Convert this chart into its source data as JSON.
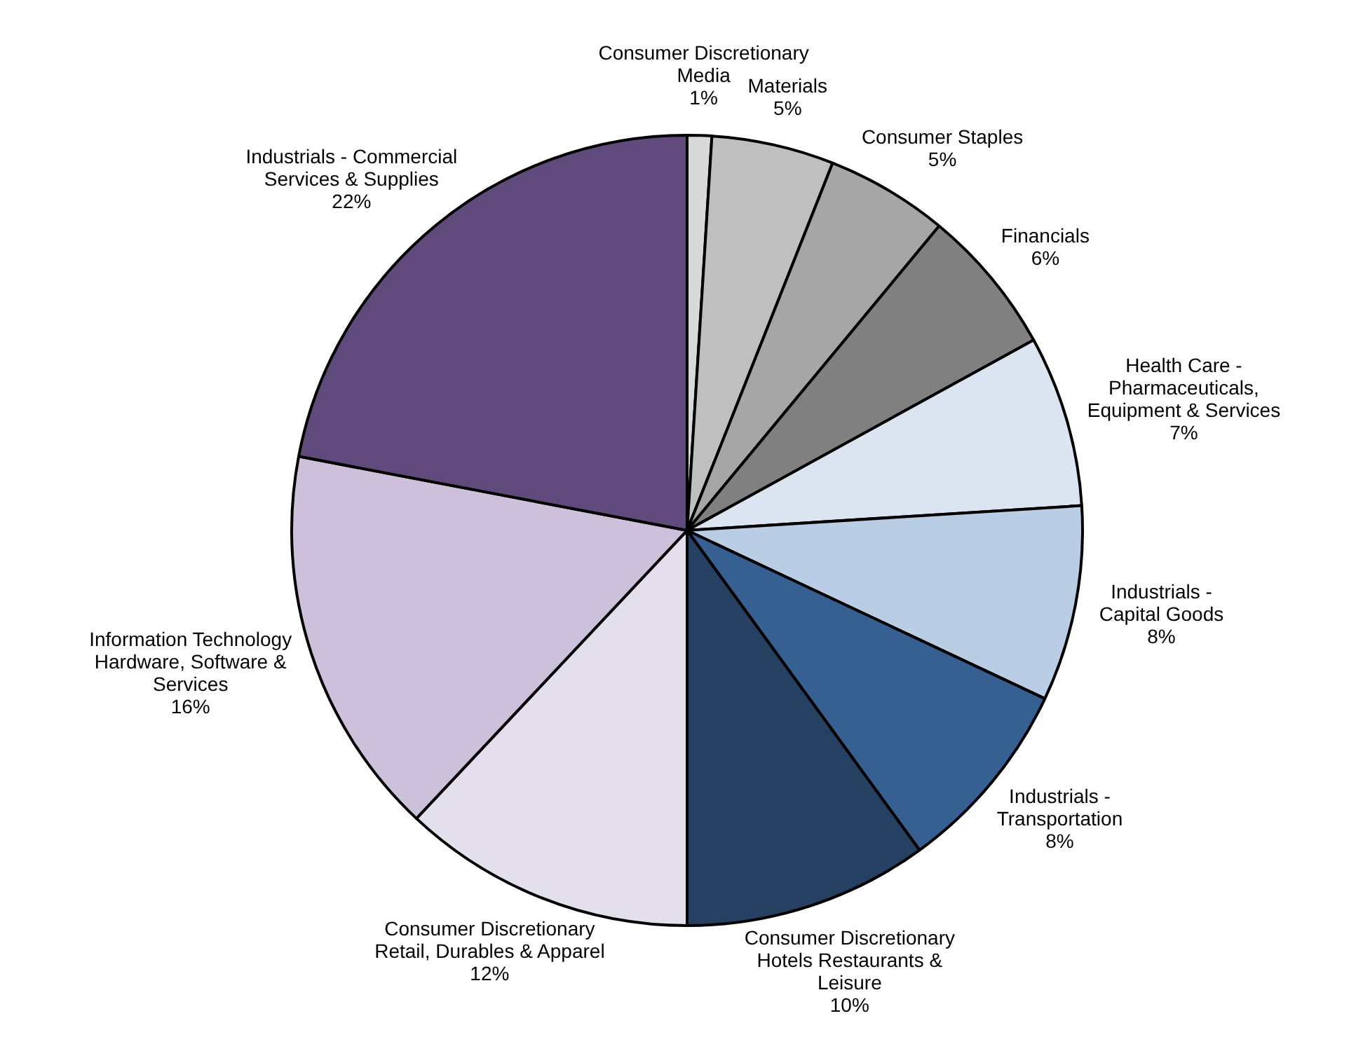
{
  "chart_data": {
    "type": "pie",
    "categories": [
      "Consumer Discretionary\nMedia",
      "Materials",
      "Consumer Staples",
      "Financials",
      "Health Care -\nPharmaceuticals,\nEquipment & Services",
      "Industrials -\nCapital Goods",
      "Industrials -\nTransportation",
      "Consumer Discretionary\nHotels Restaurants &\nLeisure",
      "Consumer Discretionary\nRetail, Durables & Apparel",
      "Information Technology\nHardware, Software &\nServices",
      "Industrials - Commercial\nServices & Supplies"
    ],
    "values": [
      1,
      5,
      5,
      6,
      7,
      8,
      8,
      10,
      12,
      16,
      22
    ],
    "value_labels": [
      "1%",
      "5%",
      "5%",
      "6%",
      "7%",
      "8%",
      "8%",
      "10%",
      "12%",
      "16%",
      "22%"
    ],
    "colors": [
      "#d9d9d9",
      "#bfbfbf",
      "#a6a6a6",
      "#808080",
      "#dbe5f1",
      "#b9cde5",
      "#366092",
      "#254061",
      "#e4dfec",
      "#ccc0da",
      "#604a7b"
    ],
    "legend": false
  }
}
